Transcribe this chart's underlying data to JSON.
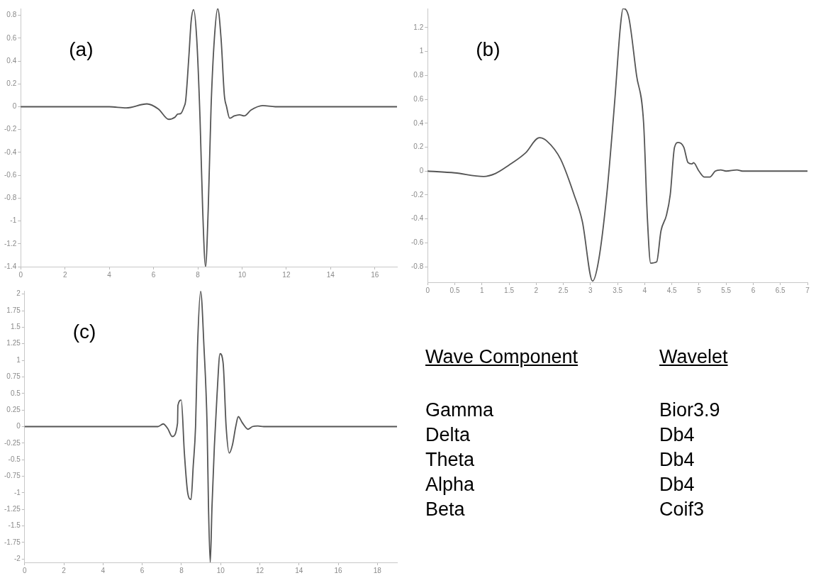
{
  "chart_data": [
    {
      "type": "line",
      "annotations": [
        "(a)"
      ],
      "xlim": [
        0,
        17
      ],
      "xticks": [
        0,
        2,
        4,
        6,
        8,
        10,
        12,
        14,
        16
      ],
      "ylim": [
        -1.4,
        0.86
      ],
      "yticks": [
        -1.4,
        -1.2,
        -1,
        -0.8,
        -0.6,
        -0.4,
        -0.2,
        0,
        0.2,
        0.4,
        0.6,
        0.8
      ],
      "grid": false,
      "legend": false,
      "marker": "none",
      "line_style": "solid",
      "series": [
        {
          "color": "#555555",
          "x": [
            0,
            4,
            4.77,
            5.7,
            6.22,
            6.69,
            6.98,
            7.09,
            7.23,
            7.38,
            7.45,
            7.6,
            7.7,
            7.81,
            7.95,
            8.1,
            8.22,
            8.35,
            8.47,
            8.6,
            8.75,
            8.9,
            9.05,
            9.2,
            9.3,
            9.44,
            9.65,
            9.88,
            10.1,
            10.4,
            10.93,
            11.5,
            17
          ],
          "values": [
            0,
            0,
            -0.01,
            0.025,
            -0.02,
            -0.11,
            -0.09,
            -0.065,
            -0.06,
            0,
            0.05,
            0.45,
            0.75,
            0.85,
            0.6,
            -0.1,
            -0.9,
            -1.4,
            -0.9,
            0,
            0.6,
            0.86,
            0.6,
            0.1,
            0,
            -0.1,
            -0.08,
            -0.07,
            -0.08,
            -0.03,
            0.01,
            0,
            0
          ]
        }
      ]
    },
    {
      "type": "line",
      "annotations": [
        "(b)"
      ],
      "xlim": [
        0,
        7
      ],
      "xticks": [
        0,
        0.5,
        1,
        1.5,
        2,
        2.5,
        3,
        3.5,
        4,
        4.5,
        5,
        5.5,
        6,
        6.5,
        7
      ],
      "ylim": [
        -0.93,
        1.36
      ],
      "yticks": [
        -0.8,
        -0.6,
        -0.4,
        -0.2,
        0,
        0.2,
        0.4,
        0.6,
        0.8,
        1,
        1.2
      ],
      "grid": false,
      "legend": false,
      "marker": "none",
      "line_style": "solid",
      "series": [
        {
          "color": "#555555",
          "x": [
            0,
            0.5,
            1.03,
            1.25,
            1.5,
            1.8,
            2.06,
            2.2,
            2.45,
            2.7,
            2.85,
            3.04,
            3.15,
            3.3,
            3.45,
            3.55,
            3.6,
            3.7,
            3.85,
            3.98,
            4.05,
            4.11,
            4.22,
            4.3,
            4.4,
            4.47,
            4.55,
            4.62,
            4.72,
            4.8,
            4.87,
            4.9,
            5,
            5.1,
            5.2,
            5.3,
            5.4,
            5.5,
            5.7,
            5.8,
            7
          ],
          "values": [
            0,
            -0.015,
            -0.045,
            -0.02,
            0.05,
            0.15,
            0.28,
            0.25,
            0.1,
            -0.2,
            -0.42,
            -0.92,
            -0.75,
            -0.2,
            0.6,
            1.2,
            1.36,
            1.3,
            0.8,
            0.4,
            -0.4,
            -0.77,
            -0.76,
            -0.5,
            -0.37,
            -0.2,
            0.2,
            0.24,
            0.2,
            0.07,
            0.06,
            0.07,
            0,
            -0.05,
            -0.05,
            0,
            0.01,
            0,
            0.01,
            0,
            0
          ]
        }
      ]
    },
    {
      "type": "line",
      "annotations": [
        "(c)"
      ],
      "xlim": [
        0,
        19
      ],
      "xticks": [
        0,
        2,
        4,
        6,
        8,
        10,
        12,
        14,
        16,
        18
      ],
      "ylim": [
        -2.05,
        2.05
      ],
      "yticks": [
        -2,
        -1.75,
        -1.5,
        -1.25,
        -1,
        -0.75,
        -0.5,
        -0.25,
        0,
        0.25,
        0.5,
        0.75,
        1,
        1.25,
        1.5,
        1.75,
        2
      ],
      "grid": false,
      "legend": false,
      "marker": "none",
      "line_style": "solid",
      "series": [
        {
          "color": "#555555",
          "x": [
            0,
            6.2,
            6.8,
            7.07,
            7.3,
            7.53,
            7.8,
            7.82,
            7.99,
            8.15,
            8.32,
            8.49,
            8.6,
            8.72,
            8.82,
            8.98,
            9.15,
            9.31,
            9.38,
            9.47,
            9.56,
            9.68,
            9.82,
            9.97,
            10.13,
            10.28,
            10.44,
            10.6,
            10.77,
            10.9,
            11.1,
            11.4,
            11.62,
            11.9,
            12.2,
            19
          ],
          "values": [
            0,
            0,
            0,
            0.04,
            -0.03,
            -0.15,
            0.05,
            0.32,
            0.4,
            -0.4,
            -1,
            -1.1,
            -0.6,
            0,
            1.2,
            2.04,
            1.2,
            0,
            -1.2,
            -2.05,
            -1.2,
            -0.3,
            0.5,
            1.1,
            0.95,
            0,
            -0.4,
            -0.28,
            0,
            0.15,
            0.06,
            -0.04,
            0,
            0.01,
            0,
            0
          ]
        }
      ]
    },
    {
      "type": "other",
      "annotations": [
        "Wave Component",
        "Wavelet",
        "Gamma",
        "Bior3.9",
        "Delta",
        "Db4",
        "Theta",
        "Db4",
        "Alpha",
        "Db4",
        "Beta",
        "Coif3"
      ]
    }
  ]
}
